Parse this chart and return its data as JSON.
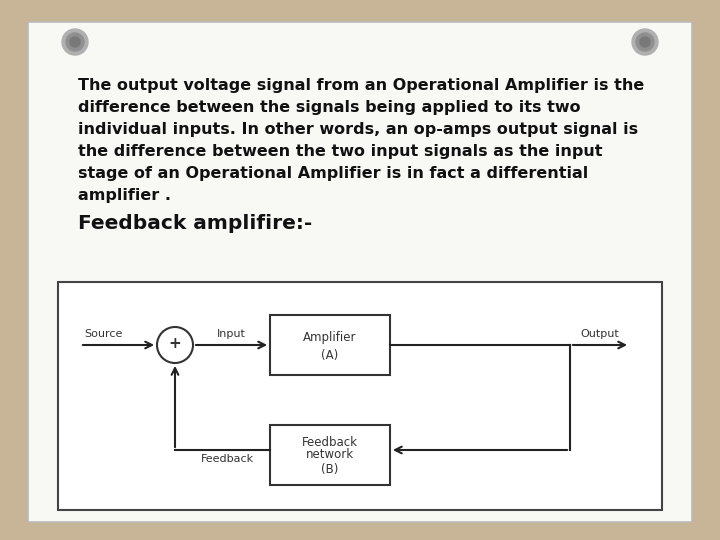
{
  "bg_color": "#c8b496",
  "paper_color": "#f8f8f4",
  "paper_border_color": "#aaaaaa",
  "text_color": "#111111",
  "para_lines": [
    "The output voltage signal from an Operational Amplifier is the",
    "difference between the signals being applied to its two",
    "individual inputs. In other words, an op-amps output signal is",
    "the difference between the two input signals as the input",
    "stage of an Operational Amplifier is in fact a differential",
    "amplifier ."
  ],
  "heading": "Feedback amplifire:-",
  "body_fontsize": 11.5,
  "heading_fontsize": 14.5
}
